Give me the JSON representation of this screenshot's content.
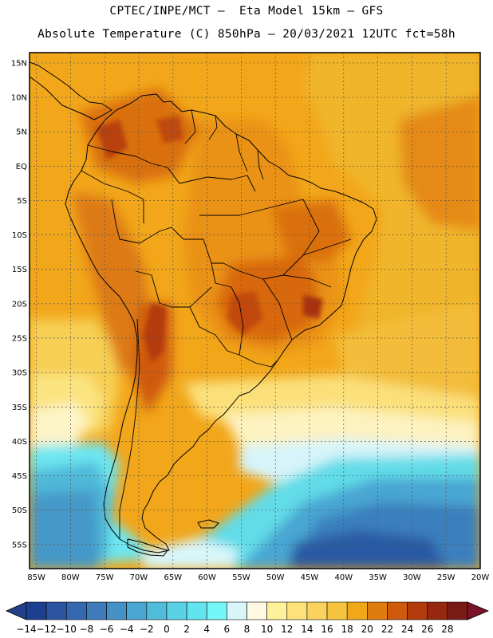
{
  "header": {
    "line1": "CPTEC/INPE/MCT –  Eta Model 15km – GFS",
    "line2": "Absolute Temperature (C) 850hPa – 20/03/2021 12UTC fct=58h"
  },
  "axes": {
    "lat_labels": [
      "15N",
      "10N",
      "5N",
      "EQ",
      "5S",
      "10S",
      "15S",
      "20S",
      "25S",
      "30S",
      "35S",
      "40S",
      "45S",
      "50S",
      "55S"
    ],
    "lon_labels": [
      "85W",
      "80W",
      "75W",
      "70W",
      "65W",
      "60W",
      "55W",
      "50W",
      "45W",
      "40W",
      "35W",
      "30W",
      "25W",
      "20W"
    ],
    "lat_values": [
      15,
      10,
      5,
      0,
      -5,
      -10,
      -15,
      -20,
      -25,
      -30,
      -35,
      -40,
      -45,
      -50,
      -55
    ],
    "lon_values": [
      -85,
      -80,
      -75,
      -70,
      -65,
      -60,
      -55,
      -50,
      -45,
      -40,
      -35,
      -30,
      -25,
      -20
    ],
    "lat_range": [
      -58.5,
      16.5
    ],
    "lon_range": [
      -86,
      -20
    ]
  },
  "colorbar": {
    "labels": [
      "-14",
      "-12",
      "-10",
      "-8",
      "-6",
      "-4",
      "-2",
      "0",
      "2",
      "4",
      "6",
      "8",
      "10",
      "12",
      "14",
      "16",
      "18",
      "20",
      "22",
      "24",
      "26",
      "28"
    ],
    "colors": [
      "#1c3f8f",
      "#2b55a0",
      "#3568ae",
      "#3d7bbb",
      "#4591c6",
      "#4aa6d0",
      "#50bcdb",
      "#5ad2e6",
      "#62e4ee",
      "#74f6f6",
      "#d8f6fa",
      "#fff8e2",
      "#fdf19a",
      "#fde27a",
      "#f9d35e",
      "#f5c33e",
      "#f0a818",
      "#e07b0e",
      "#cf5a0c",
      "#b43b0b",
      "#962810",
      "#7a1a16"
    ],
    "under_color": "#24408a",
    "over_color": "#7a1328"
  }
}
